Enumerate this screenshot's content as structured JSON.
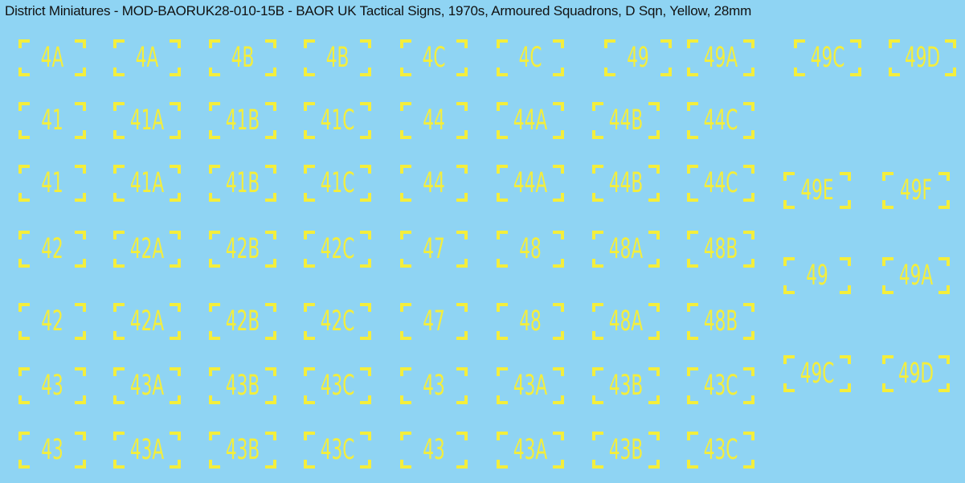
{
  "header": {
    "title": "District Miniatures - MOD-BAORUK28-010-15B - BAOR UK Tactical Signs, 1970s, Armoured Squadrons, D Sqn, Yellow, 28mm"
  },
  "sheet": {
    "top_row": [
      "4A",
      "4A",
      "4B",
      "4B",
      "4C",
      "4C",
      "49",
      "49A",
      "49C",
      "49D"
    ],
    "grid": [
      [
        "41",
        "41A",
        "41B",
        "41C",
        "44",
        "44A",
        "44B",
        "44C"
      ],
      [
        "41",
        "41A",
        "41B",
        "41C",
        "44",
        "44A",
        "44B",
        "44C"
      ],
      [
        "42",
        "42A",
        "42B",
        "42C",
        "47",
        "48",
        "48A",
        "48B"
      ],
      [
        "42",
        "42A",
        "42B",
        "42C",
        "47",
        "48",
        "48A",
        "48B"
      ],
      [
        "43",
        "43A",
        "43B",
        "43C",
        "43",
        "43A",
        "43B",
        "43C"
      ],
      [
        "43",
        "43A",
        "43B",
        "43C",
        "43",
        "43A",
        "43B",
        "43C"
      ]
    ],
    "side_column": [
      [
        "49E",
        "49F"
      ],
      [
        "49",
        "49A"
      ],
      [
        "49C",
        "49D"
      ]
    ]
  }
}
